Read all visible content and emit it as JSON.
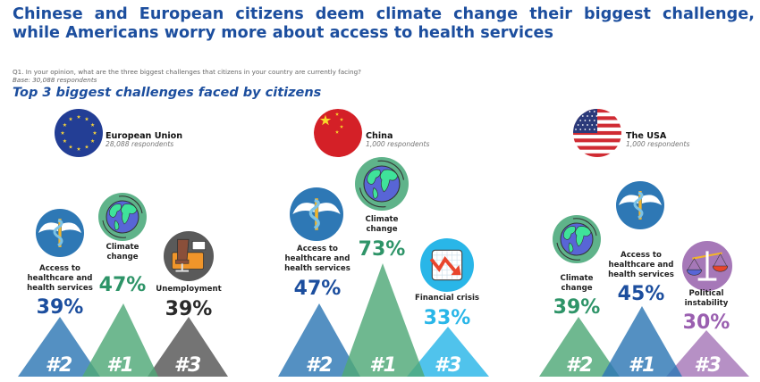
{
  "header": {
    "title_line1": "Chinese and European citizens deem climate change their biggest challenge,",
    "title_line2": "while Americans worry more about access to health services",
    "question": "Q1. In your opinion, what are the three biggest challenges that citizens in your country are currently facing?",
    "base": "Base: 30,088 respondents",
    "subtitle": "Top 3 biggest challenges faced by citizens"
  },
  "colors": {
    "title": "#1c4e9e",
    "health": "#2e78b5",
    "health_text": "#1c4e9e",
    "climate": "#4fa878",
    "climate_text": "#2e9468",
    "unemployment": "#555555",
    "unemployment_text": "#2a2a2a",
    "financial": "#29b6e8",
    "financial_text": "#29b6e8",
    "political": "#a678b8",
    "political_text": "#9a5fb0"
  },
  "regions": [
    {
      "name": "European Union",
      "respondents": "28,088 respondents",
      "flag_icon": "eu-flag-icon",
      "items": [
        {
          "rank": "#2",
          "label": [
            "Access to",
            "healthcare and",
            "health services"
          ],
          "value": "39%",
          "percent": 39,
          "icon": "caduceus-icon",
          "category": "health"
        },
        {
          "rank": "#1",
          "label": [
            "Climate",
            "change"
          ],
          "value": "47%",
          "percent": 47,
          "icon": "globe-icon",
          "category": "climate"
        },
        {
          "rank": "#3",
          "label": [
            "Unemployment"
          ],
          "value": "39%",
          "percent": 39,
          "icon": "office-chair-icon",
          "category": "unemployment"
        }
      ]
    },
    {
      "name": "China",
      "respondents": "1,000 respondents",
      "flag_icon": "china-flag-icon",
      "items": [
        {
          "rank": "#2",
          "label": [
            "Access to",
            "healthcare and",
            "health services"
          ],
          "value": "47%",
          "percent": 47,
          "icon": "caduceus-icon",
          "category": "health"
        },
        {
          "rank": "#1",
          "label": [
            "Climate",
            "change"
          ],
          "value": "73%",
          "percent": 73,
          "icon": "globe-icon",
          "category": "climate"
        },
        {
          "rank": "#3",
          "label": [
            "Financial crisis"
          ],
          "value": "33%",
          "percent": 33,
          "icon": "falling-chart-icon",
          "category": "financial"
        }
      ]
    },
    {
      "name": "The USA",
      "respondents": "1,000 respondents",
      "flag_icon": "usa-flag-icon",
      "items": [
        {
          "rank": "#2",
          "label": [
            "Climate",
            "change"
          ],
          "value": "39%",
          "percent": 39,
          "icon": "globe-icon",
          "category": "climate"
        },
        {
          "rank": "#1",
          "label": [
            "Access to",
            "healthcare and",
            "health services"
          ],
          "value": "45%",
          "percent": 45,
          "icon": "caduceus-icon",
          "category": "health"
        },
        {
          "rank": "#3",
          "label": [
            "Political",
            "instability"
          ],
          "value": "30%",
          "percent": 30,
          "icon": "scales-icon",
          "category": "political"
        }
      ]
    }
  ]
}
